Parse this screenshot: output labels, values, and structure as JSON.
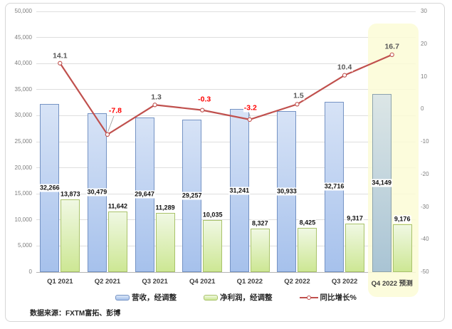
{
  "source_text": "数据来源：FXTM富拓、彭博",
  "chart_data": {
    "type": "combo bar+line",
    "grid": "horizontal",
    "legend_position": "bottom",
    "categories": [
      "Q1 2021",
      "Q2 2021",
      "Q3 2021",
      "Q4 2021",
      "Q1 2022",
      "Q2 2022",
      "Q3 2022",
      "Q4 2022 预测"
    ],
    "series": [
      {
        "name": "营收，经调整",
        "type": "bar",
        "axis": "left",
        "values": [
          32266,
          30479,
          29647,
          29257,
          31241,
          30933,
          32716,
          34149
        ],
        "labels": [
          "32,266",
          "30,479",
          "29,647",
          "29,257",
          "31,241",
          "30,933",
          "32,716",
          "34,149"
        ],
        "colors": {
          "fill_top": "#d7e3f6",
          "fill_bottom": "#a6c1ec",
          "border": "#7593c4"
        },
        "forecast_colors": {
          "fill_top": "#dce6e6",
          "fill_bottom": "#a9c4d4",
          "border": "#8ca3ae"
        }
      },
      {
        "name": "净利润，经调整",
        "type": "bar",
        "axis": "left",
        "values": [
          13873,
          11642,
          11289,
          10035,
          8327,
          8425,
          9317,
          9176
        ],
        "labels": [
          "13,873",
          "11,642",
          "11,289",
          "10,035",
          "8,327",
          "8,425",
          "9,317",
          "9,176"
        ],
        "colors": {
          "fill_top": "#f0f8e3",
          "fill_bottom": "#cde794",
          "border": "#a9c36b"
        }
      },
      {
        "name": "同比增长%",
        "type": "line",
        "axis": "right",
        "values": [
          14.1,
          -7.8,
          1.3,
          -0.3,
          -3.2,
          1.5,
          10.4,
          16.7
        ],
        "labels": [
          "14.1",
          "-7.8",
          "1.3",
          "-0.3",
          "-3.2",
          "1.5",
          "10.4",
          "16.7"
        ],
        "color": "#c0504d",
        "marker": "open-circle",
        "label_color_positive": "#595959",
        "label_color_negative": "#ff0000"
      }
    ],
    "left_axis": {
      "min": 0,
      "max": 50000,
      "step": 5000,
      "tick_labels": [
        "0",
        "5,000",
        "10,000",
        "15,000",
        "20,000",
        "25,000",
        "30,000",
        "35,000",
        "40,000",
        "45,000",
        "50,000"
      ]
    },
    "right_axis": {
      "min": -50,
      "max": 30,
      "step": 10,
      "tick_labels": [
        "-50",
        "-40",
        "-30",
        "-20",
        "-10",
        "0",
        "10",
        "20",
        "30"
      ]
    },
    "forecast": {
      "category_index": 7,
      "highlight_color": "rgba(251,251,214,0.85)"
    }
  }
}
